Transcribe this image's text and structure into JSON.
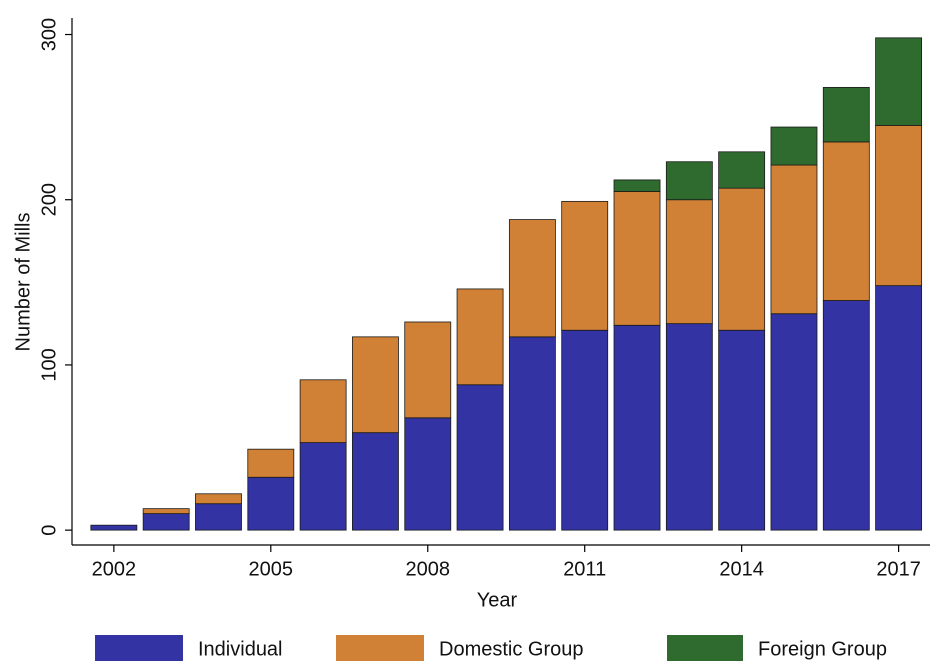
{
  "chart_data": {
    "type": "stacked_bar",
    "x_label": "Year",
    "y_label": "Number of Mills",
    "x": [
      2002,
      2003,
      2004,
      2005,
      2006,
      2007,
      2008,
      2009,
      2010,
      2011,
      2012,
      2013,
      2014,
      2015,
      2016,
      2017
    ],
    "series": [
      {
        "name": "Individual",
        "color": "#3333a3",
        "values": [
          3,
          10,
          16,
          32,
          53,
          59,
          68,
          88,
          117,
          121,
          124,
          125,
          121,
          131,
          139,
          148
        ]
      },
      {
        "name": "Domestic Group",
        "color": "#d08135",
        "values": [
          0,
          3,
          6,
          17,
          38,
          58,
          58,
          58,
          71,
          78,
          81,
          75,
          86,
          90,
          96,
          97
        ]
      },
      {
        "name": "Foreign Group",
        "color": "#2f6b2f",
        "values": [
          0,
          0,
          0,
          0,
          0,
          0,
          0,
          0,
          0,
          0,
          7,
          23,
          22,
          23,
          33,
          53
        ]
      }
    ],
    "xlim": [
      2001.2,
      2017.6
    ],
    "xticks": [
      2002,
      2005,
      2008,
      2011,
      2014,
      2017
    ],
    "ylim": [
      -9,
      310
    ],
    "yticks": [
      0,
      100,
      200,
      300
    ],
    "legend": "bottom"
  }
}
